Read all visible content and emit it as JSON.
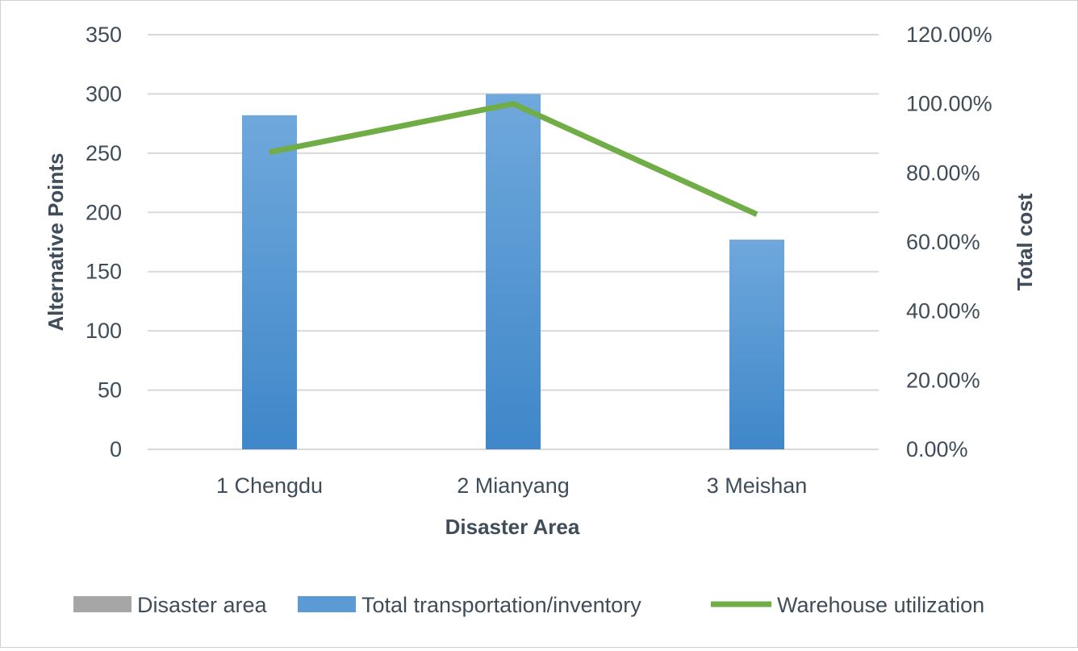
{
  "chart_data": {
    "type": "bar",
    "categories": [
      "1 Chengdu",
      "2 Mianyang",
      "3 Meishan"
    ],
    "series": [
      {
        "name": "Disaster area",
        "type": "bar",
        "axis": "left",
        "values": [
          0,
          0,
          0
        ],
        "color": "#a6a6a6"
      },
      {
        "name": "Total transportation/inventory",
        "type": "bar",
        "axis": "left",
        "values": [
          282,
          300,
          177
        ],
        "color": "#5b9bd5"
      },
      {
        "name": "Warehouse utilization",
        "type": "line",
        "axis": "right",
        "values": [
          0.86,
          1.0,
          0.68
        ],
        "color": "#70ad47"
      }
    ],
    "xlabel": "Disaster Area",
    "ylabel": "Alternative Points",
    "y2label": "Total cost",
    "ylim": [
      0,
      350
    ],
    "y2lim": [
      0,
      1.2
    ],
    "yticks": [
      "0",
      "50",
      "100",
      "150",
      "200",
      "250",
      "300",
      "350"
    ],
    "y2ticks": [
      "0.00%",
      "20.00%",
      "40.00%",
      "60.00%",
      "80.00%",
      "100.00%",
      "120.00%"
    ],
    "grid": true,
    "legend": "bottom"
  }
}
